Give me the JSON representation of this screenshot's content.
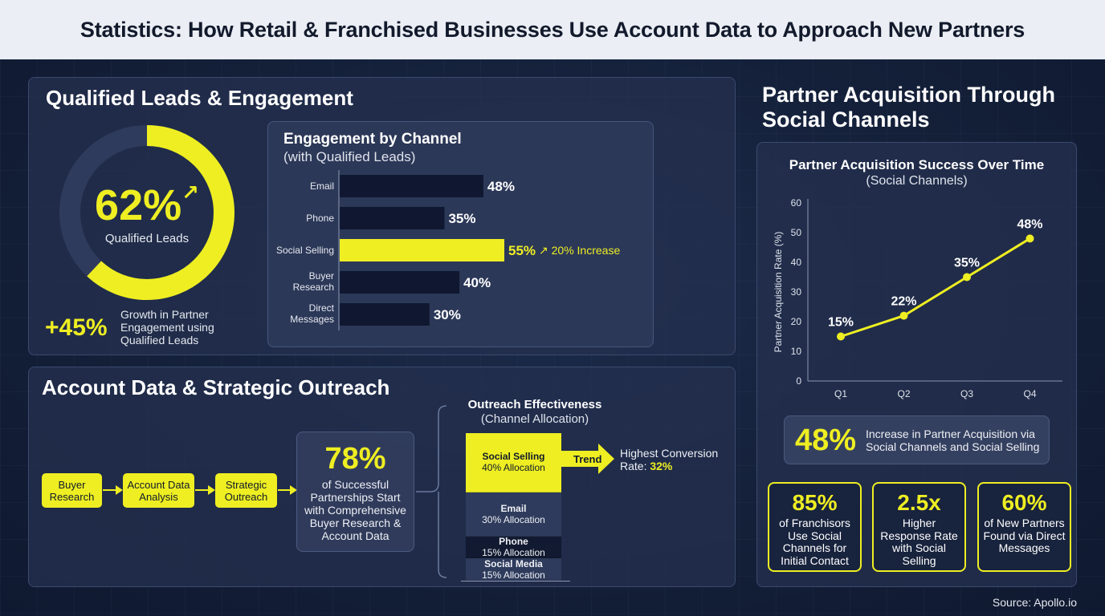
{
  "header": {
    "title": "Statistics: How Retail & Franchised Businesses Use Account Data to Approach New Partners"
  },
  "qualified": {
    "title": "Qualified Leads & Engagement",
    "donut_value": "62%",
    "donut_fraction": 0.62,
    "donut_label": "Qualified Leads",
    "growth_value": "+45%",
    "growth_text": [
      "Growth in Partner",
      "Engagement using",
      "Qualified Leads"
    ]
  },
  "engagement": {
    "title": "Engagement by Channel",
    "subtitle": "(with Qualified Leads)",
    "highlight_note": "20% Increase"
  },
  "account": {
    "title": "Account Data & Strategic Outreach",
    "flow": [
      "Buyer Research",
      "Account Data Analysis",
      "Strategic Outreach"
    ],
    "stat_value": "78%",
    "stat_text": [
      "of Successful",
      "Partnerships Start",
      "with Comprehensive",
      "Buyer Research &",
      "Account Data"
    ]
  },
  "outreach": {
    "title": "Outreach Effectiveness",
    "subtitle": "(Channel Allocation)",
    "segments": [
      {
        "name": "Social Selling",
        "label": "40% Allocation",
        "value": 40,
        "color": "#eeee22"
      },
      {
        "name": "Email",
        "label": "30% Allocation",
        "value": 30,
        "color": "#2e3b5c"
      },
      {
        "name": "Phone",
        "label": "15% Allocation",
        "value": 15,
        "color": "#111a30"
      },
      {
        "name": "Social Media",
        "label": "15% Allocation",
        "value": 15,
        "color": "#2e3b5c"
      }
    ],
    "trend_label": "Trend",
    "conversion_text": "Highest Conversion",
    "conversion_prefix": "Rate:",
    "conversion_value": "32%"
  },
  "acquisition": {
    "title_line1": "Partner Acquisition Through",
    "title_line2": "Social Channels",
    "chart_title": "Partner Acquisition Success Over Time",
    "chart_subtitle": "(Social Channels)",
    "summary_value": "48%",
    "summary_text": [
      "Increase in Partner Acquisition via",
      "Social Channels and Social Selling"
    ],
    "stats": [
      {
        "value": "85%",
        "lines": [
          "of Franchisors",
          "Use Social",
          "Channels for",
          "Initial Contact"
        ]
      },
      {
        "value": "2.5x",
        "lines": [
          "Higher",
          "Response Rate",
          "with Social",
          "Selling"
        ]
      },
      {
        "value": "60%",
        "lines": [
          "of New Partners",
          "Found via Direct",
          "Messages"
        ]
      }
    ]
  },
  "source": "Source: Apollo.io",
  "chart_data": [
    {
      "type": "bar",
      "orientation": "horizontal",
      "title": "Engagement by Channel",
      "subtitle": "(with Qualified Leads)",
      "categories": [
        "Email",
        "Phone",
        "Social Selling",
        "Buyer Research",
        "Direct Messages"
      ],
      "values": [
        48,
        35,
        55,
        40,
        30
      ],
      "labels": [
        "48%",
        "35%",
        "55%",
        "40%",
        "30%"
      ],
      "highlight": "Social Selling"
    },
    {
      "type": "line",
      "title": "Partner Acquisition Success Over Time",
      "subtitle": "(Social Channels)",
      "ylabel": "Partner Acquisition Rate (%)",
      "x": [
        "Q1",
        "Q2",
        "Q3",
        "Q4"
      ],
      "values": [
        15,
        22,
        35,
        48
      ],
      "labels": [
        "15%",
        "22%",
        "35%",
        "48%"
      ],
      "yticks": [
        0,
        10,
        20,
        30,
        40,
        50,
        60
      ],
      "ylim": [
        0,
        60
      ],
      "grid": false
    }
  ]
}
